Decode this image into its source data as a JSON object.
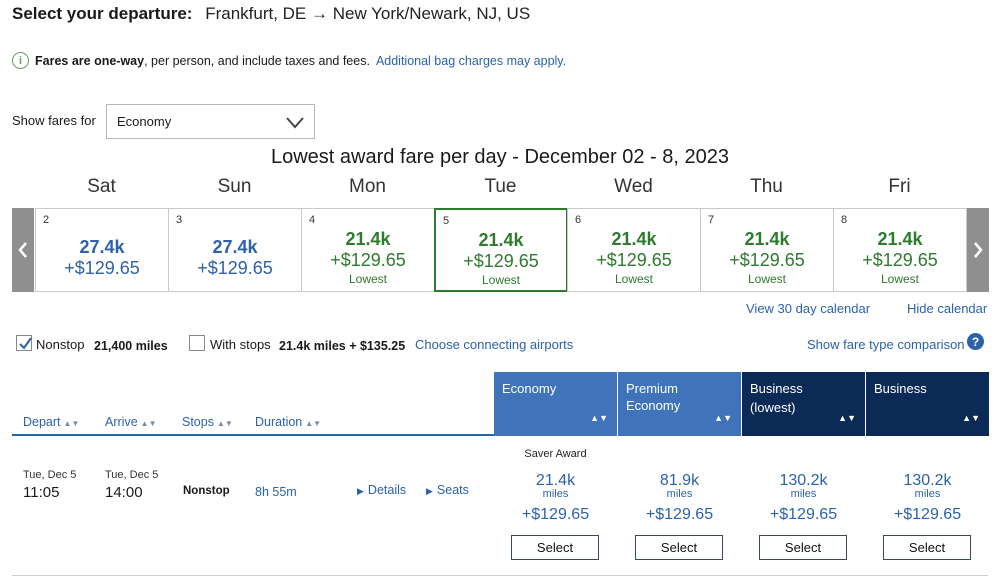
{
  "header": {
    "label": "Select your departure:",
    "route": "Frankfurt, DE → New York/Newark, NJ, US"
  },
  "info": {
    "bold": "Fares are one-way",
    "text": ", per person, and include taxes and fees.",
    "link": "Additional bag charges may apply."
  },
  "fare_filter": {
    "label": "Show fares for",
    "selected": "Economy"
  },
  "calendar": {
    "title": "Lowest award fare per day - December 02 - 8, 2023",
    "days": [
      {
        "name": "Sat",
        "num": "2",
        "miles": "27.4k",
        "tax": "+$129.65",
        "note": ""
      },
      {
        "name": "Sun",
        "num": "3",
        "miles": "27.4k",
        "tax": "+$129.65",
        "note": ""
      },
      {
        "name": "Mon",
        "num": "4",
        "miles": "21.4k",
        "tax": "+$129.65",
        "note": "Lowest"
      },
      {
        "name": "Tue",
        "num": "5",
        "miles": "21.4k",
        "tax": "+$129.65",
        "note": "Lowest"
      },
      {
        "name": "Wed",
        "num": "6",
        "miles": "21.4k",
        "tax": "+$129.65",
        "note": "Lowest"
      },
      {
        "name": "Thu",
        "num": "7",
        "miles": "21.4k",
        "tax": "+$129.65",
        "note": "Lowest"
      },
      {
        "name": "Fri",
        "num": "8",
        "miles": "21.4k",
        "tax": "+$129.65",
        "note": "Lowest"
      }
    ],
    "selected_index": 3,
    "view30_link": "View 30 day calendar",
    "hide_link": "Hide calendar"
  },
  "filters": {
    "nonstop_label": "Nonstop",
    "nonstop_checked": true,
    "nonstop_price": "21,400 miles",
    "stops_label": "With stops",
    "stops_checked": false,
    "stops_price": "21.4k miles + $135.25",
    "connect_link": "Choose connecting airports",
    "compare_link": "Show fare type comparison",
    "help_glyph": "?"
  },
  "columns": {
    "depart": "Depart",
    "arrive": "Arrive",
    "stops": "Stops",
    "duration": "Duration",
    "sort_glyph": "▲▼",
    "fare_types": [
      {
        "line1": "Economy",
        "line2": ""
      },
      {
        "line1": "Premium",
        "line2": "Economy"
      },
      {
        "line1": "Business",
        "line2": "(lowest)"
      },
      {
        "line1": "Business",
        "line2": ""
      }
    ]
  },
  "flight": {
    "depart_date": "Tue, Dec 5",
    "depart_time": "11:05",
    "arrive_date": "Tue, Dec 5",
    "arrive_time": "14:00",
    "stops": "Nonstop",
    "duration": "8h 55m",
    "details_link": "Details",
    "seats_link": "Seats",
    "saver_label": "Saver Award",
    "fares": [
      {
        "miles": "21.4k",
        "unit": "miles",
        "tax": "+$129.65",
        "button": "Select"
      },
      {
        "miles": "81.9k",
        "unit": "miles",
        "tax": "+$129.65",
        "button": "Select"
      },
      {
        "miles": "130.2k",
        "unit": "miles",
        "tax": "+$129.65",
        "button": "Select"
      },
      {
        "miles": "130.2k",
        "unit": "miles",
        "tax": "+$129.65",
        "button": "Select"
      }
    ]
  },
  "colors": {
    "link_blue": "#2c62a8",
    "lowest_green": "#2e7a2e",
    "economy_header": "#3f74bb",
    "business_header": "#0c2a56"
  }
}
